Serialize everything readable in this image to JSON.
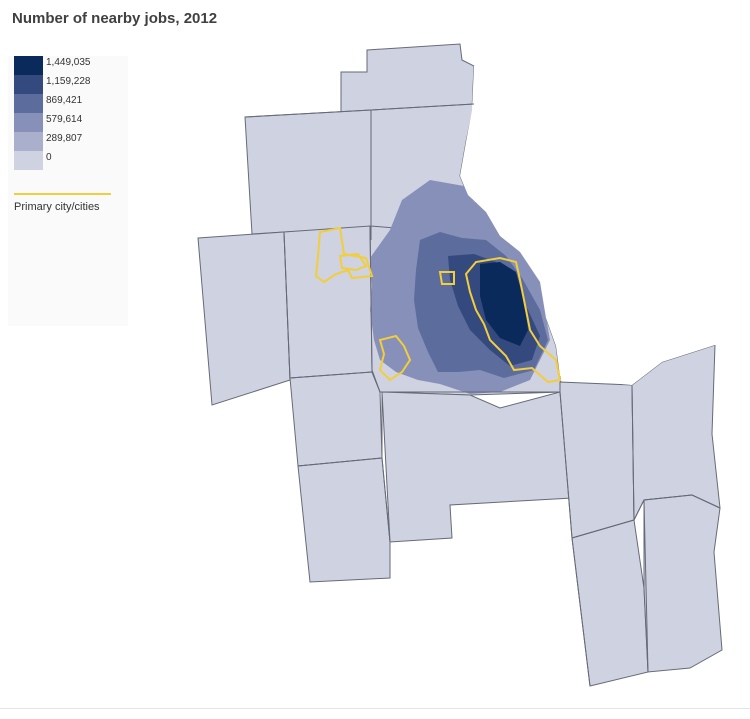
{
  "title": "Number of nearby jobs, 2012",
  "legend": {
    "bins": [
      {
        "label": "1,449,035",
        "color": "#0b2a5c"
      },
      {
        "label": "1,159,228",
        "color": "#344a7e"
      },
      {
        "label": "869,421",
        "color": "#5c6c9c"
      },
      {
        "label": "579,614",
        "color": "#8790b8"
      },
      {
        "label": "289,807",
        "color": "#aab0cc"
      },
      {
        "label": "0",
        "color": "#cfd2e1"
      }
    ],
    "city_label": "Primary city/cities",
    "city_color": "#f2cd3c"
  },
  "colors": {
    "base_fill": "#cfd2e1",
    "county_border": "#666a78",
    "lake": "#ffffff"
  }
}
